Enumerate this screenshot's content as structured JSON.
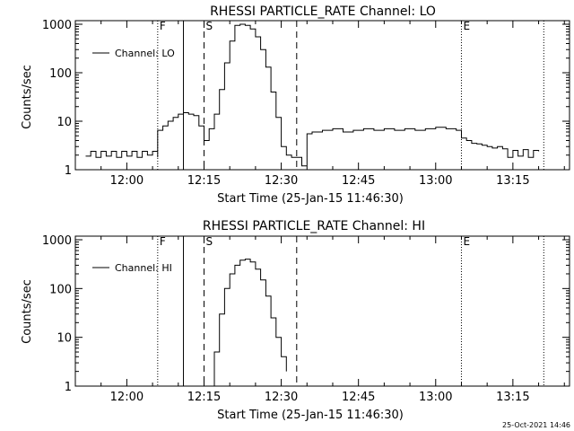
{
  "footer": {
    "timestamp": "25-Oct-2021 14:46"
  },
  "chart_data": [
    {
      "type": "line",
      "title": "RHESSI PARTICLE_RATE Channel: LO",
      "xlabel": "Start Time (25-Jan-15 11:46:30)",
      "ylabel": "Counts/sec",
      "yscale": "log",
      "ylim": [
        1,
        1000
      ],
      "xlim": [
        "11:50",
        "13:26"
      ],
      "yticks": [
        "1",
        "10",
        "100",
        "1000"
      ],
      "xticks": [
        "12:00",
        "12:15",
        "12:30",
        "12:45",
        "13:00",
        "13:15"
      ],
      "legend": {
        "label": "Channel: LO",
        "position": "top-left"
      },
      "markers": [
        {
          "label": "F",
          "time": "12:06",
          "style": "dotted"
        },
        {
          "label": "",
          "time": "12:11",
          "style": "solid"
        },
        {
          "label": "S",
          "time": "12:15",
          "style": "dashed"
        },
        {
          "label": "",
          "time": "12:33",
          "style": "dashed"
        },
        {
          "label": "E",
          "time": "13:05",
          "style": "dotted"
        },
        {
          "label": "",
          "time": "13:21",
          "style": "dotted"
        }
      ],
      "series": [
        {
          "name": "Channel: LO",
          "x": [
            "11:52",
            "11:53",
            "11:54",
            "11:55",
            "11:56",
            "11:57",
            "11:58",
            "11:59",
            "12:00",
            "12:01",
            "12:02",
            "12:03",
            "12:04",
            "12:05",
            "12:06",
            "12:06",
            "12:07",
            "12:08",
            "12:09",
            "12:10",
            "12:11",
            "12:12",
            "12:13",
            "12:14",
            "12:15",
            "12:16",
            "12:17",
            "12:18",
            "12:19",
            "12:20",
            "12:21",
            "12:22",
            "12:23",
            "12:24",
            "12:25",
            "12:26",
            "12:27",
            "12:28",
            "12:29",
            "12:30",
            "12:31",
            "12:32",
            "12:33",
            "12:34",
            "12:35",
            "12:35",
            "12:36",
            "12:38",
            "12:40",
            "12:42",
            "12:44",
            "12:46",
            "12:48",
            "12:50",
            "12:52",
            "12:54",
            "12:56",
            "12:58",
            "13:00",
            "13:02",
            "13:04",
            "13:05",
            "13:06",
            "13:07",
            "13:08",
            "13:09",
            "13:10",
            "13:11",
            "13:12",
            "13:13",
            "13:14",
            "13:15",
            "13:16",
            "13:17",
            "13:18",
            "13:19",
            "13:20"
          ],
          "y": [
            1.9,
            2.4,
            1.8,
            2.4,
            1.9,
            2.4,
            1.8,
            2.4,
            1.9,
            2.4,
            1.8,
            2.4,
            2.0,
            2.4,
            1.8,
            6.5,
            8.0,
            10,
            12,
            14,
            15,
            14,
            13,
            8,
            4,
            7,
            14,
            45,
            160,
            450,
            950,
            1000,
            950,
            800,
            550,
            300,
            130,
            40,
            12,
            3,
            2,
            1.8,
            1.8,
            1.2,
            1.2,
            5.5,
            6,
            6.5,
            7,
            6,
            6.5,
            7,
            6.5,
            7,
            6.5,
            7,
            6.5,
            7,
            7.5,
            7,
            6.5,
            4.5,
            4,
            3.5,
            3.4,
            3.2,
            3,
            2.8,
            3,
            2.7,
            1.8,
            2.5,
            1.9,
            2.6,
            1.8,
            2.5,
            2.4
          ]
        }
      ]
    },
    {
      "type": "line",
      "title": "RHESSI PARTICLE_RATE Channel: HI",
      "xlabel": "Start Time (25-Jan-15 11:46:30)",
      "ylabel": "Counts/sec",
      "yscale": "log",
      "ylim": [
        1,
        1000
      ],
      "xlim": [
        "11:50",
        "13:26"
      ],
      "yticks": [
        "1",
        "10",
        "100",
        "1000"
      ],
      "xticks": [
        "12:00",
        "12:15",
        "12:30",
        "12:45",
        "13:00",
        "13:15"
      ],
      "legend": {
        "label": "Channel: HI",
        "position": "top-left"
      },
      "markers": [
        {
          "label": "F",
          "time": "12:06",
          "style": "dotted"
        },
        {
          "label": "",
          "time": "12:11",
          "style": "solid"
        },
        {
          "label": "S",
          "time": "12:15",
          "style": "dashed"
        },
        {
          "label": "",
          "time": "12:33",
          "style": "dashed"
        },
        {
          "label": "E",
          "time": "13:05",
          "style": "dotted"
        },
        {
          "label": "",
          "time": "13:21",
          "style": "dotted"
        }
      ],
      "series": [
        {
          "name": "Channel: HI",
          "x": [
            "12:16",
            "12:17",
            "12:18",
            "12:19",
            "12:20",
            "12:21",
            "12:22",
            "12:23",
            "12:24",
            "12:25",
            "12:26",
            "12:27",
            "12:28",
            "12:29",
            "12:30",
            "12:31"
          ],
          "y": [
            1,
            5,
            30,
            100,
            200,
            300,
            380,
            400,
            350,
            250,
            150,
            70,
            25,
            10,
            4,
            2
          ]
        }
      ]
    }
  ]
}
